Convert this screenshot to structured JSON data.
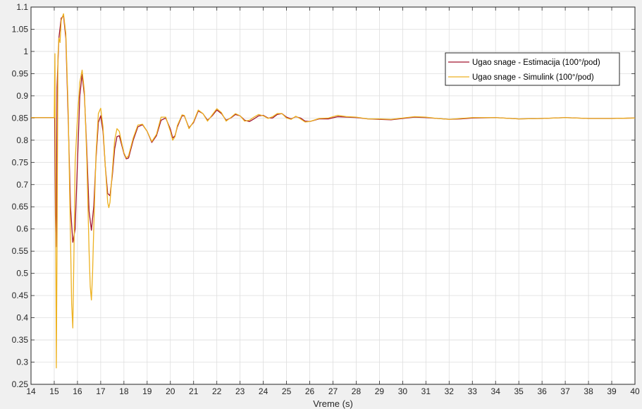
{
  "chart_data": {
    "type": "line",
    "title": "",
    "xlabel": "Vreme (s)",
    "ylabel": "",
    "xlim": [
      14,
      40
    ],
    "ylim": [
      0.25,
      1.1
    ],
    "xticks": [
      14,
      15,
      16,
      17,
      18,
      19,
      20,
      21,
      22,
      23,
      24,
      25,
      26,
      27,
      28,
      29,
      30,
      31,
      32,
      33,
      34,
      35,
      36,
      37,
      38,
      39,
      40
    ],
    "yticks": [
      0.25,
      0.3,
      0.35,
      0.4,
      0.45,
      0.5,
      0.55,
      0.6,
      0.65,
      0.7,
      0.75,
      0.8,
      0.85,
      0.9,
      0.95,
      1,
      1.05,
      1.1
    ],
    "ytick_labels": [
      "0.25",
      "0.3",
      "0.35",
      "0.4",
      "0.45",
      "0.5",
      "0.55",
      "0.6",
      "0.65",
      "0.7",
      "0.75",
      "0.8",
      "0.85",
      "0.9",
      "0.95",
      "1",
      "1.05",
      "1.1"
    ],
    "grid": true,
    "legend_position": "top-right",
    "series": [
      {
        "name": "Ugao snage - Estimacija (100°/pod)",
        "color": "#a2142f",
        "points": [
          [
            14,
            0.851
          ],
          [
            15.0,
            0.851
          ],
          [
            15.02,
            0.85
          ],
          [
            15.05,
            0.63
          ],
          [
            15.08,
            0.56
          ],
          [
            15.12,
            0.92
          ],
          [
            15.2,
            1.03
          ],
          [
            15.3,
            1.075
          ],
          [
            15.4,
            1.08
          ],
          [
            15.5,
            1.03
          ],
          [
            15.6,
            0.85
          ],
          [
            15.7,
            0.65
          ],
          [
            15.8,
            0.57
          ],
          [
            15.9,
            0.6
          ],
          [
            16.0,
            0.75
          ],
          [
            16.1,
            0.9
          ],
          [
            16.2,
            0.948
          ],
          [
            16.3,
            0.9
          ],
          [
            16.4,
            0.78
          ],
          [
            16.5,
            0.64
          ],
          [
            16.6,
            0.597
          ],
          [
            16.7,
            0.65
          ],
          [
            16.8,
            0.76
          ],
          [
            16.9,
            0.84
          ],
          [
            17.0,
            0.855
          ],
          [
            17.1,
            0.82
          ],
          [
            17.2,
            0.74
          ],
          [
            17.3,
            0.68
          ],
          [
            17.4,
            0.675
          ],
          [
            17.5,
            0.72
          ],
          [
            17.6,
            0.78
          ],
          [
            17.7,
            0.808
          ],
          [
            17.8,
            0.81
          ],
          [
            17.9,
            0.79
          ],
          [
            18.0,
            0.77
          ],
          [
            18.1,
            0.758
          ],
          [
            18.2,
            0.76
          ],
          [
            18.4,
            0.8
          ],
          [
            18.6,
            0.83
          ],
          [
            18.8,
            0.835
          ],
          [
            19.0,
            0.82
          ],
          [
            19.2,
            0.795
          ],
          [
            19.4,
            0.81
          ],
          [
            19.6,
            0.845
          ],
          [
            19.8,
            0.85
          ],
          [
            20.0,
            0.825
          ],
          [
            20.1,
            0.805
          ],
          [
            20.2,
            0.81
          ],
          [
            20.3,
            0.83
          ],
          [
            20.5,
            0.855
          ],
          [
            20.6,
            0.855
          ],
          [
            20.8,
            0.828
          ],
          [
            21.0,
            0.84
          ],
          [
            21.2,
            0.866
          ],
          [
            21.4,
            0.86
          ],
          [
            21.6,
            0.845
          ],
          [
            21.8,
            0.855
          ],
          [
            22.0,
            0.868
          ],
          [
            22.2,
            0.86
          ],
          [
            22.4,
            0.845
          ],
          [
            22.6,
            0.85
          ],
          [
            22.8,
            0.858
          ],
          [
            23.0,
            0.855
          ],
          [
            23.2,
            0.845
          ],
          [
            23.4,
            0.842
          ],
          [
            23.6,
            0.848
          ],
          [
            23.8,
            0.855
          ],
          [
            24.0,
            0.856
          ],
          [
            24.2,
            0.85
          ],
          [
            24.4,
            0.85
          ],
          [
            24.6,
            0.858
          ],
          [
            24.8,
            0.86
          ],
          [
            25.0,
            0.852
          ],
          [
            25.2,
            0.848
          ],
          [
            25.4,
            0.853
          ],
          [
            25.6,
            0.85
          ],
          [
            25.8,
            0.843
          ],
          [
            26.0,
            0.842
          ],
          [
            26.4,
            0.848
          ],
          [
            26.8,
            0.848
          ],
          [
            27.2,
            0.853
          ],
          [
            27.6,
            0.852
          ],
          [
            28.0,
            0.851
          ],
          [
            28.5,
            0.848
          ],
          [
            29.0,
            0.847
          ],
          [
            29.5,
            0.846
          ],
          [
            30.0,
            0.849
          ],
          [
            30.5,
            0.852
          ],
          [
            31.0,
            0.851
          ],
          [
            31.5,
            0.849
          ],
          [
            32.0,
            0.847
          ],
          [
            32.5,
            0.848
          ],
          [
            33.0,
            0.85
          ],
          [
            34.0,
            0.851
          ],
          [
            35.0,
            0.848
          ],
          [
            36.0,
            0.849
          ],
          [
            37.0,
            0.851
          ],
          [
            38.0,
            0.849
          ],
          [
            39.0,
            0.849
          ],
          [
            40.0,
            0.85
          ]
        ]
      },
      {
        "name": "Ugao snage - Simulink (100°/pod)",
        "color": "#edb120",
        "points": [
          [
            14,
            0.851
          ],
          [
            15.0,
            0.851
          ],
          [
            15.03,
            0.995
          ],
          [
            15.06,
            0.62
          ],
          [
            15.09,
            0.287
          ],
          [
            15.12,
            0.55
          ],
          [
            15.16,
            0.99
          ],
          [
            15.2,
            1.03
          ],
          [
            15.25,
            1.02
          ],
          [
            15.3,
            1.07
          ],
          [
            15.4,
            1.085
          ],
          [
            15.5,
            1.04
          ],
          [
            15.6,
            0.87
          ],
          [
            15.7,
            0.58
          ],
          [
            15.75,
            0.43
          ],
          [
            15.8,
            0.377
          ],
          [
            15.85,
            0.55
          ],
          [
            15.9,
            0.75
          ],
          [
            16.0,
            0.85
          ],
          [
            16.1,
            0.93
          ],
          [
            16.2,
            0.958
          ],
          [
            16.3,
            0.91
          ],
          [
            16.4,
            0.76
          ],
          [
            16.5,
            0.55
          ],
          [
            16.55,
            0.47
          ],
          [
            16.6,
            0.44
          ],
          [
            16.65,
            0.5
          ],
          [
            16.7,
            0.6
          ],
          [
            16.8,
            0.77
          ],
          [
            16.9,
            0.86
          ],
          [
            17.0,
            0.872
          ],
          [
            17.1,
            0.83
          ],
          [
            17.2,
            0.74
          ],
          [
            17.3,
            0.66
          ],
          [
            17.35,
            0.648
          ],
          [
            17.4,
            0.66
          ],
          [
            17.5,
            0.73
          ],
          [
            17.6,
            0.8
          ],
          [
            17.7,
            0.826
          ],
          [
            17.8,
            0.82
          ],
          [
            17.9,
            0.795
          ],
          [
            18.0,
            0.772
          ],
          [
            18.1,
            0.76
          ],
          [
            18.2,
            0.765
          ],
          [
            18.4,
            0.805
          ],
          [
            18.6,
            0.834
          ],
          [
            18.8,
            0.836
          ],
          [
            19.0,
            0.82
          ],
          [
            19.2,
            0.797
          ],
          [
            19.4,
            0.813
          ],
          [
            19.6,
            0.852
          ],
          [
            19.8,
            0.852
          ],
          [
            20.0,
            0.82
          ],
          [
            20.1,
            0.8
          ],
          [
            20.2,
            0.808
          ],
          [
            20.3,
            0.833
          ],
          [
            20.5,
            0.857
          ],
          [
            20.6,
            0.856
          ],
          [
            20.8,
            0.826
          ],
          [
            21.0,
            0.842
          ],
          [
            21.2,
            0.868
          ],
          [
            21.4,
            0.86
          ],
          [
            21.6,
            0.843
          ],
          [
            21.8,
            0.857
          ],
          [
            22.0,
            0.871
          ],
          [
            22.2,
            0.862
          ],
          [
            22.4,
            0.843
          ],
          [
            22.6,
            0.851
          ],
          [
            22.8,
            0.86
          ],
          [
            23.0,
            0.855
          ],
          [
            23.2,
            0.843
          ],
          [
            23.4,
            0.845
          ],
          [
            23.6,
            0.852
          ],
          [
            23.8,
            0.858
          ],
          [
            24.0,
            0.855
          ],
          [
            24.2,
            0.849
          ],
          [
            24.4,
            0.853
          ],
          [
            24.6,
            0.86
          ],
          [
            24.8,
            0.86
          ],
          [
            25.0,
            0.85
          ],
          [
            25.2,
            0.847
          ],
          [
            25.4,
            0.854
          ],
          [
            25.6,
            0.848
          ],
          [
            25.8,
            0.841
          ],
          [
            26.0,
            0.842
          ],
          [
            26.4,
            0.849
          ],
          [
            26.8,
            0.85
          ],
          [
            27.2,
            0.856
          ],
          [
            27.6,
            0.853
          ],
          [
            28.0,
            0.852
          ],
          [
            28.5,
            0.848
          ],
          [
            29.0,
            0.848
          ],
          [
            29.5,
            0.847
          ],
          [
            30.0,
            0.85
          ],
          [
            30.5,
            0.853
          ],
          [
            31.0,
            0.852
          ],
          [
            31.5,
            0.849
          ],
          [
            32.0,
            0.847
          ],
          [
            32.5,
            0.849
          ],
          [
            33.0,
            0.851
          ],
          [
            34.0,
            0.851
          ],
          [
            35.0,
            0.848
          ],
          [
            36.0,
            0.849
          ],
          [
            37.0,
            0.851
          ],
          [
            38.0,
            0.849
          ],
          [
            39.0,
            0.849
          ],
          [
            40.0,
            0.85
          ]
        ]
      }
    ]
  }
}
